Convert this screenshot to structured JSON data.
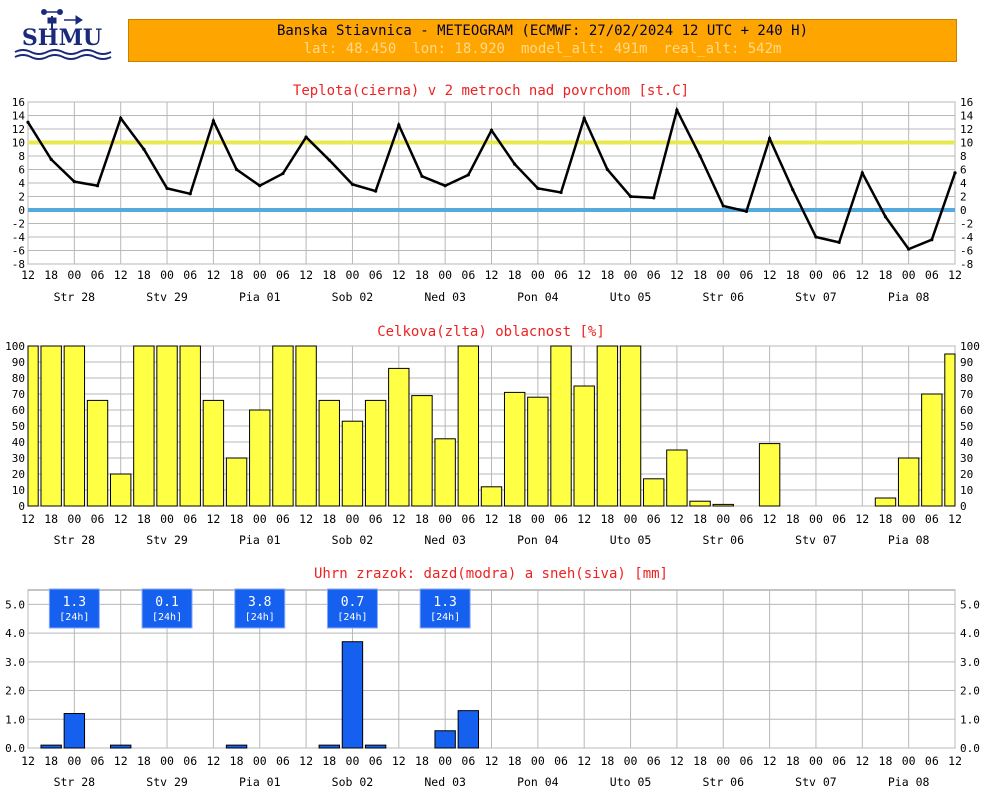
{
  "logo": {
    "text": "SHMU"
  },
  "header": {
    "title": "Banska Stiavnica - METEOGRAM (ECMWF: 27/02/2024 12 UTC + 240 H)",
    "lat": "lat: 48.450",
    "lon": "lon: 18.920",
    "model_alt": "model_alt: 491m",
    "real_alt": "real_alt: 542m"
  },
  "x_hours": [
    "12",
    "18",
    "00",
    "06",
    "12",
    "18",
    "00",
    "06",
    "12",
    "18",
    "00",
    "06",
    "12",
    "18",
    "00",
    "06",
    "12",
    "18",
    "00",
    "06",
    "12",
    "18",
    "00",
    "06",
    "12",
    "18",
    "00",
    "06",
    "12",
    "18",
    "00",
    "06",
    "12",
    "18",
    "00",
    "06",
    "12",
    "18",
    "00",
    "06",
    "12"
  ],
  "x_days": [
    "Str 28",
    "Stv 29",
    "Pia 01",
    "Sob 02",
    "Ned 03",
    "Pon 04",
    "Uto 05",
    "Str 06",
    "Stv 07",
    "Pia 08"
  ],
  "chart_data": [
    {
      "type": "line",
      "title": "Teplota(cierna) v 2 metroch nad povrchom [st.C]",
      "ylim": [
        -8,
        16
      ],
      "yticks": [
        "16",
        "14",
        "12",
        "10",
        "8",
        "6",
        "4",
        "2",
        "0",
        "-2",
        "-4",
        "-6",
        "-8"
      ],
      "reference_lines": [
        {
          "value": 10,
          "color": "#e8e850"
        },
        {
          "value": 0,
          "color": "#55aadd"
        }
      ],
      "series": [
        {
          "color": "#000000",
          "values": [
            13.0,
            7.5,
            4.2,
            3.6,
            13.6,
            9.0,
            3.2,
            2.4,
            13.2,
            6.0,
            3.6,
            5.4,
            10.8,
            7.4,
            3.8,
            2.8,
            12.6,
            5.0,
            3.6,
            5.2,
            11.8,
            6.8,
            3.2,
            2.6,
            13.6,
            6.0,
            2.0,
            1.8,
            14.8,
            8.0,
            0.6,
            -0.2,
            10.6,
            3.0,
            -4.0,
            -4.8,
            5.5,
            -1.0,
            -5.8,
            -4.4,
            5.5
          ]
        }
      ]
    },
    {
      "type": "bar",
      "title": "Celkova(zlta) oblacnost [%]",
      "ylim": [
        0,
        100
      ],
      "yticks": [
        "100",
        "90",
        "80",
        "70",
        "60",
        "50",
        "40",
        "30",
        "20",
        "10",
        "0"
      ],
      "series": [
        {
          "color": "#ffff44",
          "values": [
            100,
            100,
            100,
            66,
            20,
            100,
            100,
            100,
            66,
            30,
            60,
            100,
            100,
            66,
            53,
            66,
            86,
            69,
            42,
            100,
            12,
            71,
            68,
            100,
            75,
            100,
            100,
            17,
            35,
            3,
            1,
            0,
            39,
            0,
            0,
            0,
            0,
            5,
            30,
            70,
            95
          ]
        }
      ]
    },
    {
      "type": "bar",
      "title": "Uhrn zrazok: dazd(modra) a sneh(siva) [mm]",
      "ylim": [
        0,
        5.5
      ],
      "yticks": [
        "5.0",
        "4.0",
        "3.0",
        "2.0",
        "1.0",
        "0.0"
      ],
      "series": [
        {
          "color": "#1560ee",
          "values": [
            0,
            0.1,
            1.2,
            0,
            0.1,
            0,
            0,
            0,
            0,
            0.1,
            0,
            0,
            0,
            0.1,
            3.7,
            0.1,
            0,
            0,
            0.6,
            1.3,
            0,
            0,
            0,
            0,
            0,
            0,
            0,
            0,
            0,
            0,
            0,
            0,
            0,
            0,
            0,
            0,
            0,
            0,
            0,
            0,
            0
          ]
        }
      ],
      "annotations": [
        {
          "value": "1.3",
          "period": "[24h]"
        },
        {
          "value": "0.1",
          "period": "[24h]"
        },
        {
          "value": "3.8",
          "period": "[24h]"
        },
        {
          "value": "0.7",
          "period": "[24h]"
        },
        {
          "value": "1.3",
          "period": "[24h]"
        }
      ]
    }
  ]
}
